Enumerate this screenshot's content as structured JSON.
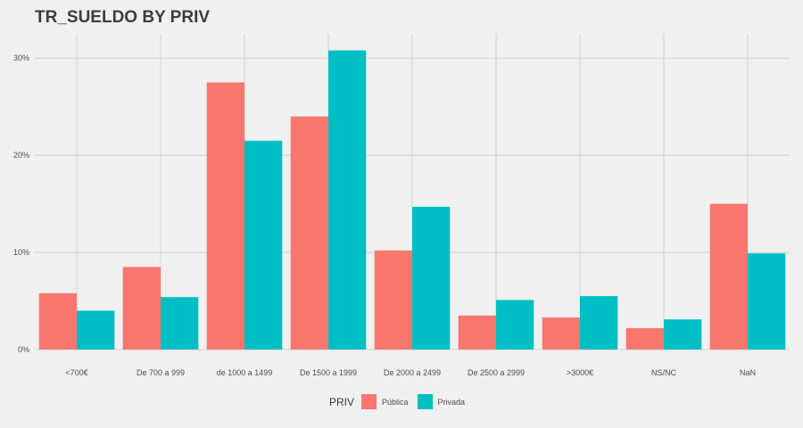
{
  "chart_data": {
    "type": "bar",
    "title": "TR_SUELDO BY PRIV",
    "xlabel": "",
    "ylabel": "",
    "categories": [
      "<700€",
      "De 700 a 999",
      "de 1000 a 1499",
      "De 1500 a 1999",
      "De 2000 a 2499",
      "De 2500 a 2999",
      ">3000€",
      "NS/NC",
      "NaN"
    ],
    "series": [
      {
        "name": "Pública",
        "color": "#f8766d",
        "values": [
          5.8,
          8.5,
          27.5,
          24.0,
          10.2,
          3.5,
          3.3,
          2.2,
          15.0
        ]
      },
      {
        "name": "Privada",
        "color": "#00bfc4",
        "values": [
          4.0,
          5.4,
          21.5,
          30.8,
          14.7,
          5.1,
          5.5,
          3.1,
          9.9
        ]
      }
    ],
    "ylim": [
      0,
      32.5
    ],
    "yticks": [
      0,
      10,
      20,
      30
    ],
    "ytick_labels": [
      "0%",
      "10%",
      "20%",
      "30%"
    ],
    "legend": {
      "title": "PRIV",
      "position": "bottom"
    },
    "grid": true
  }
}
